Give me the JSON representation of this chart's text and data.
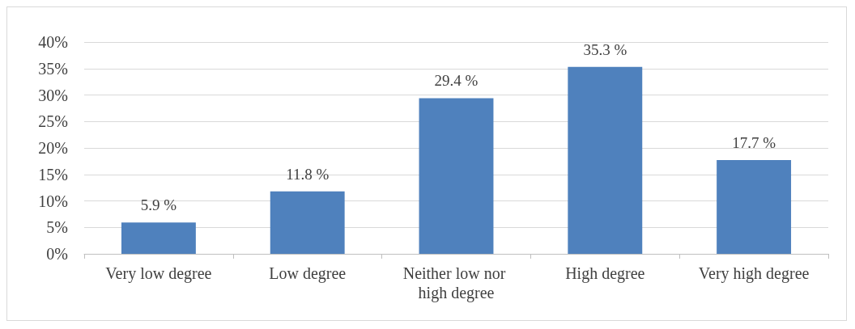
{
  "chart_data": {
    "type": "bar",
    "categories": [
      "Very low degree",
      "Low degree",
      "Neither low nor high degree",
      "High degree",
      "Very high degree"
    ],
    "values": [
      5.9,
      11.8,
      29.4,
      35.3,
      17.7
    ],
    "value_labels": [
      "5.9 %",
      "11.8 %",
      "29.4 %",
      "35.3 %",
      "17.7 %"
    ],
    "color": "#4f81bd",
    "ylim": [
      0,
      40
    ],
    "yticks": [
      {
        "value": 0,
        "label": "0%"
      },
      {
        "value": 5,
        "label": "5%"
      },
      {
        "value": 10,
        "label": "10%"
      },
      {
        "value": 15,
        "label": "15%"
      },
      {
        "value": 20,
        "label": "20%"
      },
      {
        "value": 25,
        "label": "25%"
      },
      {
        "value": 30,
        "label": "30%"
      },
      {
        "value": 35,
        "label": "35%"
      },
      {
        "value": 40,
        "label": "40%"
      }
    ],
    "grid": "y"
  }
}
